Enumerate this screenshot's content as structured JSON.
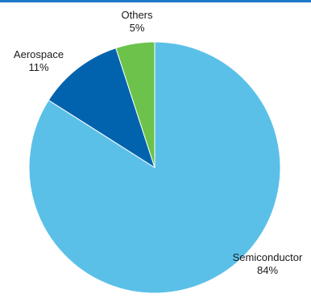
{
  "chart_data": {
    "type": "pie",
    "slices": [
      {
        "label": "Semiconductor",
        "value": 84,
        "display": "84%",
        "color": "#5bc0e8"
      },
      {
        "label": "Aerospace",
        "value": 11,
        "display": "11%",
        "color": "#0163ae"
      },
      {
        "label": "Others",
        "value": 5,
        "display": "5%",
        "color": "#6cc24a"
      }
    ],
    "start": "12 o'clock",
    "direction": "clockwise"
  },
  "colors": {
    "top_rule": "#1f77c9"
  }
}
